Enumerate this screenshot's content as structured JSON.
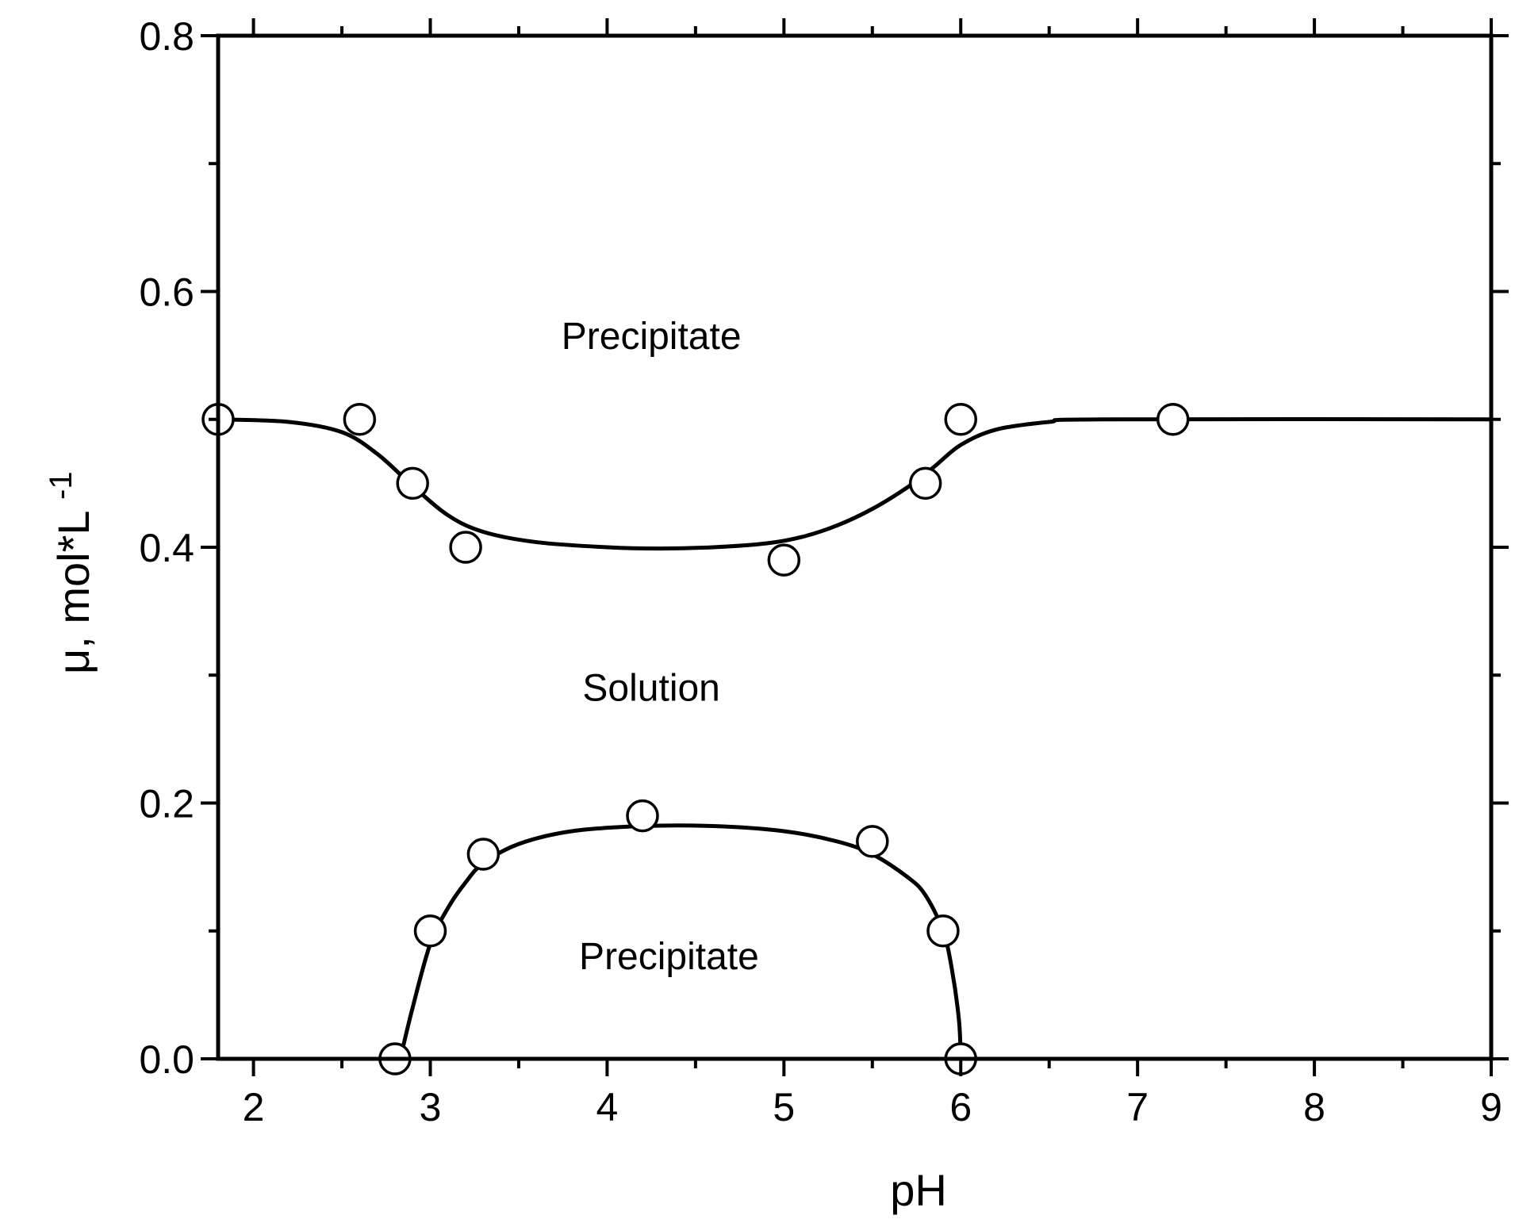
{
  "chart_data": {
    "type": "scatter",
    "title": "",
    "xlabel": "pH",
    "ylabel": "μ, mol*L",
    "ylabel_superscript": "-1",
    "xlim": [
      1.8,
      9
    ],
    "ylim": [
      0.0,
      0.8
    ],
    "x_ticks": [
      "2",
      "3",
      "4",
      "5",
      "6",
      "7",
      "8",
      "9"
    ],
    "y_ticks": [
      "0.0",
      "0.2",
      "0.4",
      "0.6",
      "0.8"
    ],
    "grid": false,
    "legend": "none",
    "series": [
      {
        "points": [
          {
            "x": 1.8,
            "y": 0.5
          },
          {
            "x": 2.6,
            "y": 0.5
          },
          {
            "x": 2.9,
            "y": 0.45
          },
          {
            "x": 3.2,
            "y": 0.4
          },
          {
            "x": 5.0,
            "y": 0.39
          },
          {
            "x": 5.8,
            "y": 0.45
          },
          {
            "x": 6.0,
            "y": 0.5
          },
          {
            "x": 7.2,
            "y": 0.5
          }
        ],
        "curve": [
          [
            1.8,
            0.5
          ],
          [
            2.2,
            0.498
          ],
          [
            2.5,
            0.49
          ],
          [
            2.7,
            0.473
          ],
          [
            2.9,
            0.448
          ],
          [
            3.1,
            0.425
          ],
          [
            3.3,
            0.412
          ],
          [
            3.6,
            0.404
          ],
          [
            4.0,
            0.4
          ],
          [
            4.3,
            0.399
          ],
          [
            4.6,
            0.4
          ],
          [
            4.9,
            0.403
          ],
          [
            5.1,
            0.408
          ],
          [
            5.3,
            0.417
          ],
          [
            5.5,
            0.43
          ],
          [
            5.7,
            0.447
          ],
          [
            5.85,
            0.463
          ],
          [
            6.0,
            0.48
          ],
          [
            6.2,
            0.492
          ],
          [
            6.5,
            0.498
          ],
          [
            6.8,
            0.5
          ],
          [
            9.0,
            0.5
          ]
        ]
      },
      {
        "points": [
          {
            "x": 2.8,
            "y": 0.0
          },
          {
            "x": 3.0,
            "y": 0.1
          },
          {
            "x": 3.3,
            "y": 0.16
          },
          {
            "x": 4.2,
            "y": 0.19
          },
          {
            "x": 5.5,
            "y": 0.17
          },
          {
            "x": 5.9,
            "y": 0.1
          },
          {
            "x": 6.0,
            "y": 0.0
          }
        ],
        "curve": [
          [
            2.83,
            0.0
          ],
          [
            2.9,
            0.04
          ],
          [
            3.0,
            0.09
          ],
          [
            3.1,
            0.118
          ],
          [
            3.2,
            0.138
          ],
          [
            3.3,
            0.153
          ],
          [
            3.5,
            0.168
          ],
          [
            3.8,
            0.178
          ],
          [
            4.2,
            0.182
          ],
          [
            4.6,
            0.182
          ],
          [
            5.0,
            0.178
          ],
          [
            5.3,
            0.17
          ],
          [
            5.5,
            0.16
          ],
          [
            5.7,
            0.142
          ],
          [
            5.8,
            0.128
          ],
          [
            5.9,
            0.1
          ],
          [
            5.95,
            0.07
          ],
          [
            5.99,
            0.03
          ],
          [
            6.0,
            0.0
          ]
        ]
      }
    ],
    "annotations": [
      {
        "text": "Precipitate",
        "x": 4.25,
        "y": 0.555
      },
      {
        "text": "Solution",
        "x": 4.25,
        "y": 0.28
      },
      {
        "text": "Precipitate",
        "x": 4.35,
        "y": 0.07
      }
    ]
  }
}
